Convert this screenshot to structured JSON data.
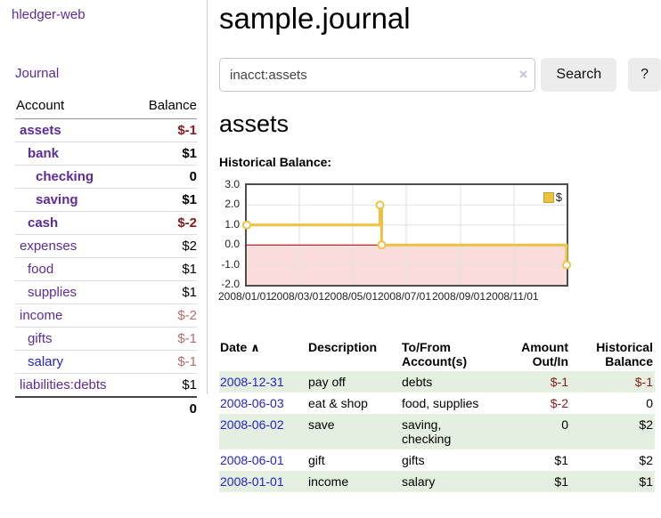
{
  "app": {
    "title": "hledger-web"
  },
  "sidebar": {
    "journal_link": "Journal",
    "accounts": {
      "header_account": "Account",
      "header_balance": "Balance",
      "rows": [
        {
          "name": "assets",
          "balance": "$-1"
        },
        {
          "name": "bank",
          "balance": "$1"
        },
        {
          "name": "checking",
          "balance": "0"
        },
        {
          "name": "saving",
          "balance": "$1"
        },
        {
          "name": "cash",
          "balance": "$-2"
        },
        {
          "name": "expenses",
          "balance": "$2"
        },
        {
          "name": "food",
          "balance": "$1"
        },
        {
          "name": "supplies",
          "balance": "$1"
        },
        {
          "name": "income",
          "balance": "$-2"
        },
        {
          "name": "gifts",
          "balance": "$-1"
        },
        {
          "name": "salary",
          "balance": "$-1"
        },
        {
          "name": "liabilities:debts",
          "balance": "$1"
        }
      ],
      "total": "0"
    }
  },
  "main": {
    "title": "sample.journal",
    "search": {
      "value": "inacct:assets",
      "clear_icon": "×",
      "button_label": "Search",
      "help_label": "?"
    },
    "account_heading": "assets",
    "chart_heading": "Historical Balance:",
    "register": {
      "headers": {
        "date": "Date",
        "sort_icon": "∧",
        "description": "Description",
        "account_line1": "To/From",
        "account_line2": "Account(s)",
        "amount_line1": "Amount",
        "amount_line2": "Out/In",
        "balance_line1": "Historical",
        "balance_line2": "Balance"
      },
      "rows": [
        {
          "date": "2008-12-31",
          "description": "pay off",
          "accounts": "debts",
          "amount": "$-1",
          "balance": "$-1"
        },
        {
          "date": "2008-06-03",
          "description": "eat & shop",
          "accounts": "food, supplies",
          "amount": "$-2",
          "balance": "0"
        },
        {
          "date": "2008-06-02",
          "description": "save",
          "accounts": "saving,\nchecking",
          "amount": "0",
          "balance": "$2"
        },
        {
          "date": "2008-06-01",
          "description": "gift",
          "accounts": "gifts",
          "amount": "$1",
          "balance": "$2"
        },
        {
          "date": "2008-01-01",
          "description": "income",
          "accounts": "salary",
          "amount": "$1",
          "balance": "$1"
        }
      ]
    }
  },
  "chart_data": {
    "type": "line",
    "title": "Historical Balance:",
    "step": true,
    "series": [
      {
        "name": "$",
        "color": "#edc240",
        "points": [
          [
            "2008-01-01",
            1
          ],
          [
            "2008-06-01",
            2
          ],
          [
            "2008-06-03",
            0
          ],
          [
            "2008-12-31",
            -1
          ]
        ]
      }
    ],
    "x_range": [
      "2008-01-01",
      "2008-12-31"
    ],
    "ylim": [
      -2,
      3
    ],
    "y_ticks": [
      "3.0",
      "2.0",
      "1.0",
      "0.0",
      "-1.0",
      "-2.0"
    ],
    "x_ticks": [
      "2008/01/01",
      "2008/03/01",
      "2008/05/01",
      "2008/07/01",
      "2008/09/01",
      "2008/11/01"
    ],
    "grid_color": "#e2e2e2",
    "zero_line_color": "#8b0000",
    "negative_region_fill": "#fbdcdc",
    "legend_position": "top-right"
  }
}
